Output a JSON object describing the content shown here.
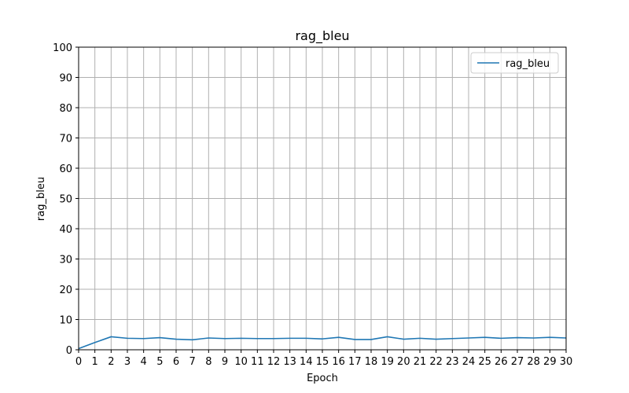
{
  "chart_data": {
    "type": "line",
    "title": "rag_bleu",
    "xlabel": "Epoch",
    "ylabel": "rag_bleu",
    "xlim": [
      0,
      30
    ],
    "ylim": [
      0,
      100
    ],
    "xticks": [
      0,
      1,
      2,
      3,
      4,
      5,
      6,
      7,
      8,
      9,
      10,
      11,
      12,
      13,
      14,
      15,
      16,
      17,
      18,
      19,
      20,
      21,
      22,
      23,
      24,
      25,
      26,
      27,
      28,
      29,
      30
    ],
    "yticks": [
      0,
      10,
      20,
      30,
      40,
      50,
      60,
      70,
      80,
      90,
      100
    ],
    "grid": true,
    "legend_position": "top-right",
    "series": [
      {
        "name": "rag_bleu",
        "color": "#1f77b4",
        "x": [
          0,
          1,
          2,
          3,
          4,
          5,
          6,
          7,
          8,
          9,
          10,
          11,
          12,
          13,
          14,
          15,
          16,
          17,
          18,
          19,
          20,
          21,
          22,
          23,
          24,
          25,
          26,
          27,
          28,
          29,
          30
        ],
        "y": [
          0.4,
          2.4,
          4.3,
          3.8,
          3.7,
          4.0,
          3.5,
          3.3,
          3.9,
          3.7,
          3.8,
          3.7,
          3.7,
          3.8,
          3.8,
          3.6,
          4.1,
          3.4,
          3.4,
          4.3,
          3.5,
          3.8,
          3.5,
          3.7,
          3.9,
          4.1,
          3.8,
          4.0,
          3.9,
          4.1,
          3.9
        ]
      }
    ]
  }
}
